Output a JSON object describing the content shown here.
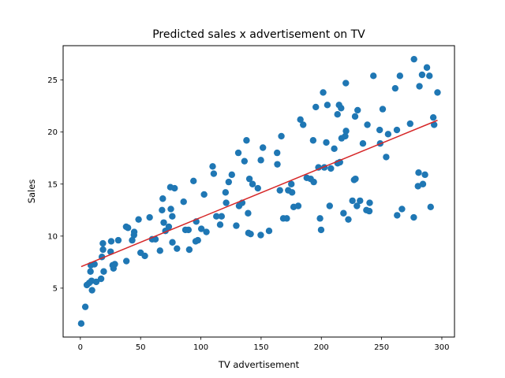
{
  "chart_data": {
    "type": "scatter",
    "title": "Predicted sales x advertisement on TV",
    "xlabel": "TV advertisement",
    "ylabel": "Sales",
    "xlim": [
      -14.3,
      310.5
    ],
    "ylim": [
      0.3,
      28.3
    ],
    "xticks": [
      0,
      50,
      100,
      150,
      200,
      250,
      300
    ],
    "yticks": [
      5,
      10,
      15,
      20,
      25
    ],
    "grid": false,
    "colors": {
      "points": "#1f77b4",
      "fit_line": "#d62728"
    },
    "fit_line": {
      "x": [
        0.7,
        296.4
      ],
      "y": [
        7.07,
        21.13
      ]
    },
    "points": [
      [
        0.7,
        1.6
      ],
      [
        4.1,
        3.2
      ],
      [
        5.4,
        5.3
      ],
      [
        7.3,
        5.5
      ],
      [
        8.4,
        6.6
      ],
      [
        8.7,
        7.2
      ],
      [
        9.3,
        5.7
      ],
      [
        9.7,
        4.8
      ],
      [
        11.7,
        7.3
      ],
      [
        13.2,
        5.6
      ],
      [
        17.2,
        5.9
      ],
      [
        17.9,
        8.0
      ],
      [
        18.7,
        9.3
      ],
      [
        19.4,
        6.6
      ],
      [
        18.8,
        8.7
      ],
      [
        25.1,
        8.5
      ],
      [
        25.6,
        9.5
      ],
      [
        26.8,
        7.2
      ],
      [
        27.5,
        6.9
      ],
      [
        28.6,
        7.3
      ],
      [
        31.5,
        9.6
      ],
      [
        38.0,
        10.9
      ],
      [
        38.2,
        7.6
      ],
      [
        39.5,
        10.8
      ],
      [
        43.0,
        9.6
      ],
      [
        44.5,
        10.1
      ],
      [
        44.7,
        10.4
      ],
      [
        48.3,
        11.6
      ],
      [
        50.0,
        8.4
      ],
      [
        53.5,
        8.1
      ],
      [
        57.5,
        11.8
      ],
      [
        59.6,
        9.7
      ],
      [
        62.3,
        9.7
      ],
      [
        66.1,
        8.6
      ],
      [
        67.8,
        12.5
      ],
      [
        68.4,
        13.6
      ],
      [
        69.2,
        11.3
      ],
      [
        70.6,
        10.5
      ],
      [
        73.4,
        10.9
      ],
      [
        74.7,
        14.7
      ],
      [
        75.1,
        12.6
      ],
      [
        76.3,
        11.9
      ],
      [
        76.4,
        9.4
      ],
      [
        78.2,
        14.6
      ],
      [
        80.2,
        8.8
      ],
      [
        85.7,
        13.3
      ],
      [
        87.2,
        10.6
      ],
      [
        89.7,
        10.6
      ],
      [
        90.4,
        8.7
      ],
      [
        93.9,
        15.3
      ],
      [
        95.7,
        9.5
      ],
      [
        96.2,
        11.4
      ],
      [
        97.5,
        9.6
      ],
      [
        100.4,
        10.7
      ],
      [
        102.7,
        14.0
      ],
      [
        104.6,
        10.4
      ],
      [
        109.8,
        16.7
      ],
      [
        110.7,
        16.0
      ],
      [
        112.9,
        11.9
      ],
      [
        116.0,
        11.1
      ],
      [
        117.2,
        11.9
      ],
      [
        120.5,
        14.2
      ],
      [
        121.0,
        13.2
      ],
      [
        123.1,
        15.2
      ],
      [
        125.7,
        15.9
      ],
      [
        129.4,
        11.0
      ],
      [
        131.1,
        18.0
      ],
      [
        131.7,
        12.9
      ],
      [
        134.3,
        13.2
      ],
      [
        136.2,
        17.2
      ],
      [
        137.9,
        19.2
      ],
      [
        139.2,
        12.2
      ],
      [
        139.5,
        10.3
      ],
      [
        140.3,
        15.5
      ],
      [
        141.3,
        10.2
      ],
      [
        142.9,
        15.0
      ],
      [
        147.3,
        14.6
      ],
      [
        149.7,
        10.1
      ],
      [
        149.8,
        17.3
      ],
      [
        151.5,
        18.5
      ],
      [
        156.6,
        10.5
      ],
      [
        163.3,
        18.0
      ],
      [
        163.5,
        16.9
      ],
      [
        165.6,
        14.4
      ],
      [
        166.8,
        19.6
      ],
      [
        168.4,
        11.7
      ],
      [
        171.3,
        11.7
      ],
      [
        172.5,
        14.4
      ],
      [
        175.1,
        15.0
      ],
      [
        175.7,
        14.2
      ],
      [
        177.0,
        12.8
      ],
      [
        180.8,
        12.9
      ],
      [
        182.6,
        21.2
      ],
      [
        184.9,
        20.7
      ],
      [
        187.9,
        15.6
      ],
      [
        191.1,
        15.5
      ],
      [
        193.2,
        19.2
      ],
      [
        193.7,
        15.2
      ],
      [
        195.4,
        22.4
      ],
      [
        197.6,
        16.6
      ],
      [
        198.9,
        11.7
      ],
      [
        199.8,
        10.6
      ],
      [
        201.5,
        23.8
      ],
      [
        202.5,
        16.6
      ],
      [
        204.1,
        19.0
      ],
      [
        205.0,
        22.6
      ],
      [
        206.9,
        12.9
      ],
      [
        207.9,
        16.5
      ],
      [
        210.7,
        18.4
      ],
      [
        213.4,
        21.7
      ],
      [
        213.5,
        17.0
      ],
      [
        214.7,
        22.6
      ],
      [
        215.4,
        17.1
      ],
      [
        216.4,
        22.3
      ],
      [
        216.8,
        19.4
      ],
      [
        218.4,
        12.2
      ],
      [
        219.8,
        19.6
      ],
      [
        220.3,
        24.7
      ],
      [
        220.5,
        20.1
      ],
      [
        222.4,
        11.6
      ],
      [
        225.8,
        13.4
      ],
      [
        227.2,
        15.4
      ],
      [
        228.0,
        21.5
      ],
      [
        228.3,
        15.5
      ],
      [
        229.5,
        12.9
      ],
      [
        230.1,
        22.1
      ],
      [
        232.1,
        13.4
      ],
      [
        234.5,
        18.9
      ],
      [
        237.4,
        12.5
      ],
      [
        238.2,
        20.7
      ],
      [
        239.8,
        12.4
      ],
      [
        240.1,
        13.2
      ],
      [
        243.2,
        25.4
      ],
      [
        248.4,
        20.2
      ],
      [
        248.8,
        18.9
      ],
      [
        250.9,
        22.2
      ],
      [
        253.8,
        17.6
      ],
      [
        255.4,
        19.8
      ],
      [
        261.3,
        24.2
      ],
      [
        262.7,
        20.2
      ],
      [
        262.9,
        12.0
      ],
      [
        265.2,
        25.4
      ],
      [
        266.9,
        12.6
      ],
      [
        273.7,
        20.8
      ],
      [
        276.7,
        11.8
      ],
      [
        276.9,
        27.0
      ],
      [
        280.2,
        14.8
      ],
      [
        280.7,
        16.1
      ],
      [
        281.4,
        24.4
      ],
      [
        283.6,
        25.5
      ],
      [
        284.3,
        15.0
      ],
      [
        286.0,
        15.9
      ],
      [
        287.6,
        26.2
      ],
      [
        289.7,
        25.4
      ],
      [
        290.7,
        12.8
      ],
      [
        292.9,
        21.4
      ],
      [
        293.6,
        20.7
      ],
      [
        296.4,
        23.8
      ]
    ]
  }
}
